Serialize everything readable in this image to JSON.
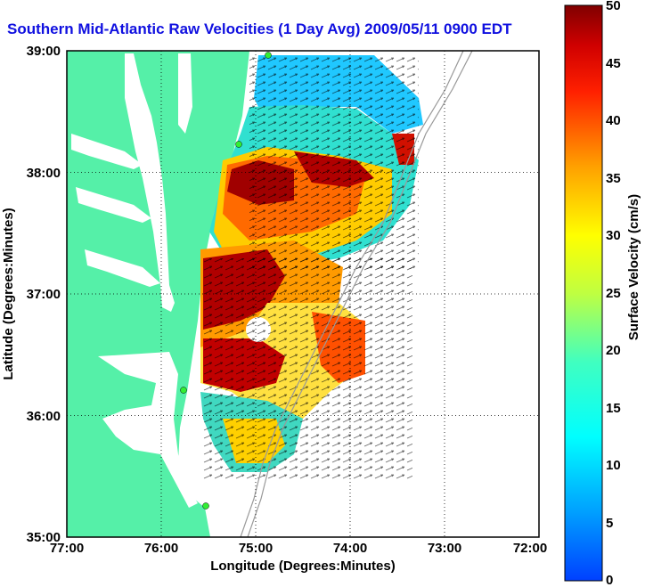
{
  "title": "Southern Mid-Atlantic Raw Velocities (1 Day Avg) 2009/05/11 0900 EDT",
  "x_axis": {
    "label": "Longitude (Degrees:Minutes)",
    "ticks": [
      "77:00",
      "76:00",
      "75:00",
      "74:00",
      "73:00",
      "72:00"
    ]
  },
  "y_axis": {
    "label": "Latitude (Degrees:Minutes)",
    "ticks": [
      "39:00",
      "38:00",
      "37:00",
      "36:00",
      "35:00"
    ]
  },
  "colorbar": {
    "label": "Surface Velocity (cm/s)",
    "ticks": [
      "50",
      "45",
      "40",
      "35",
      "30",
      "25",
      "20",
      "15",
      "10",
      "5",
      "0"
    ],
    "min": 0,
    "max": 50,
    "colormap": "jet"
  },
  "colors": {
    "land": "#55f0a8",
    "water": "#ffffff",
    "title": "#1010e0",
    "station": "#33ee33"
  }
}
